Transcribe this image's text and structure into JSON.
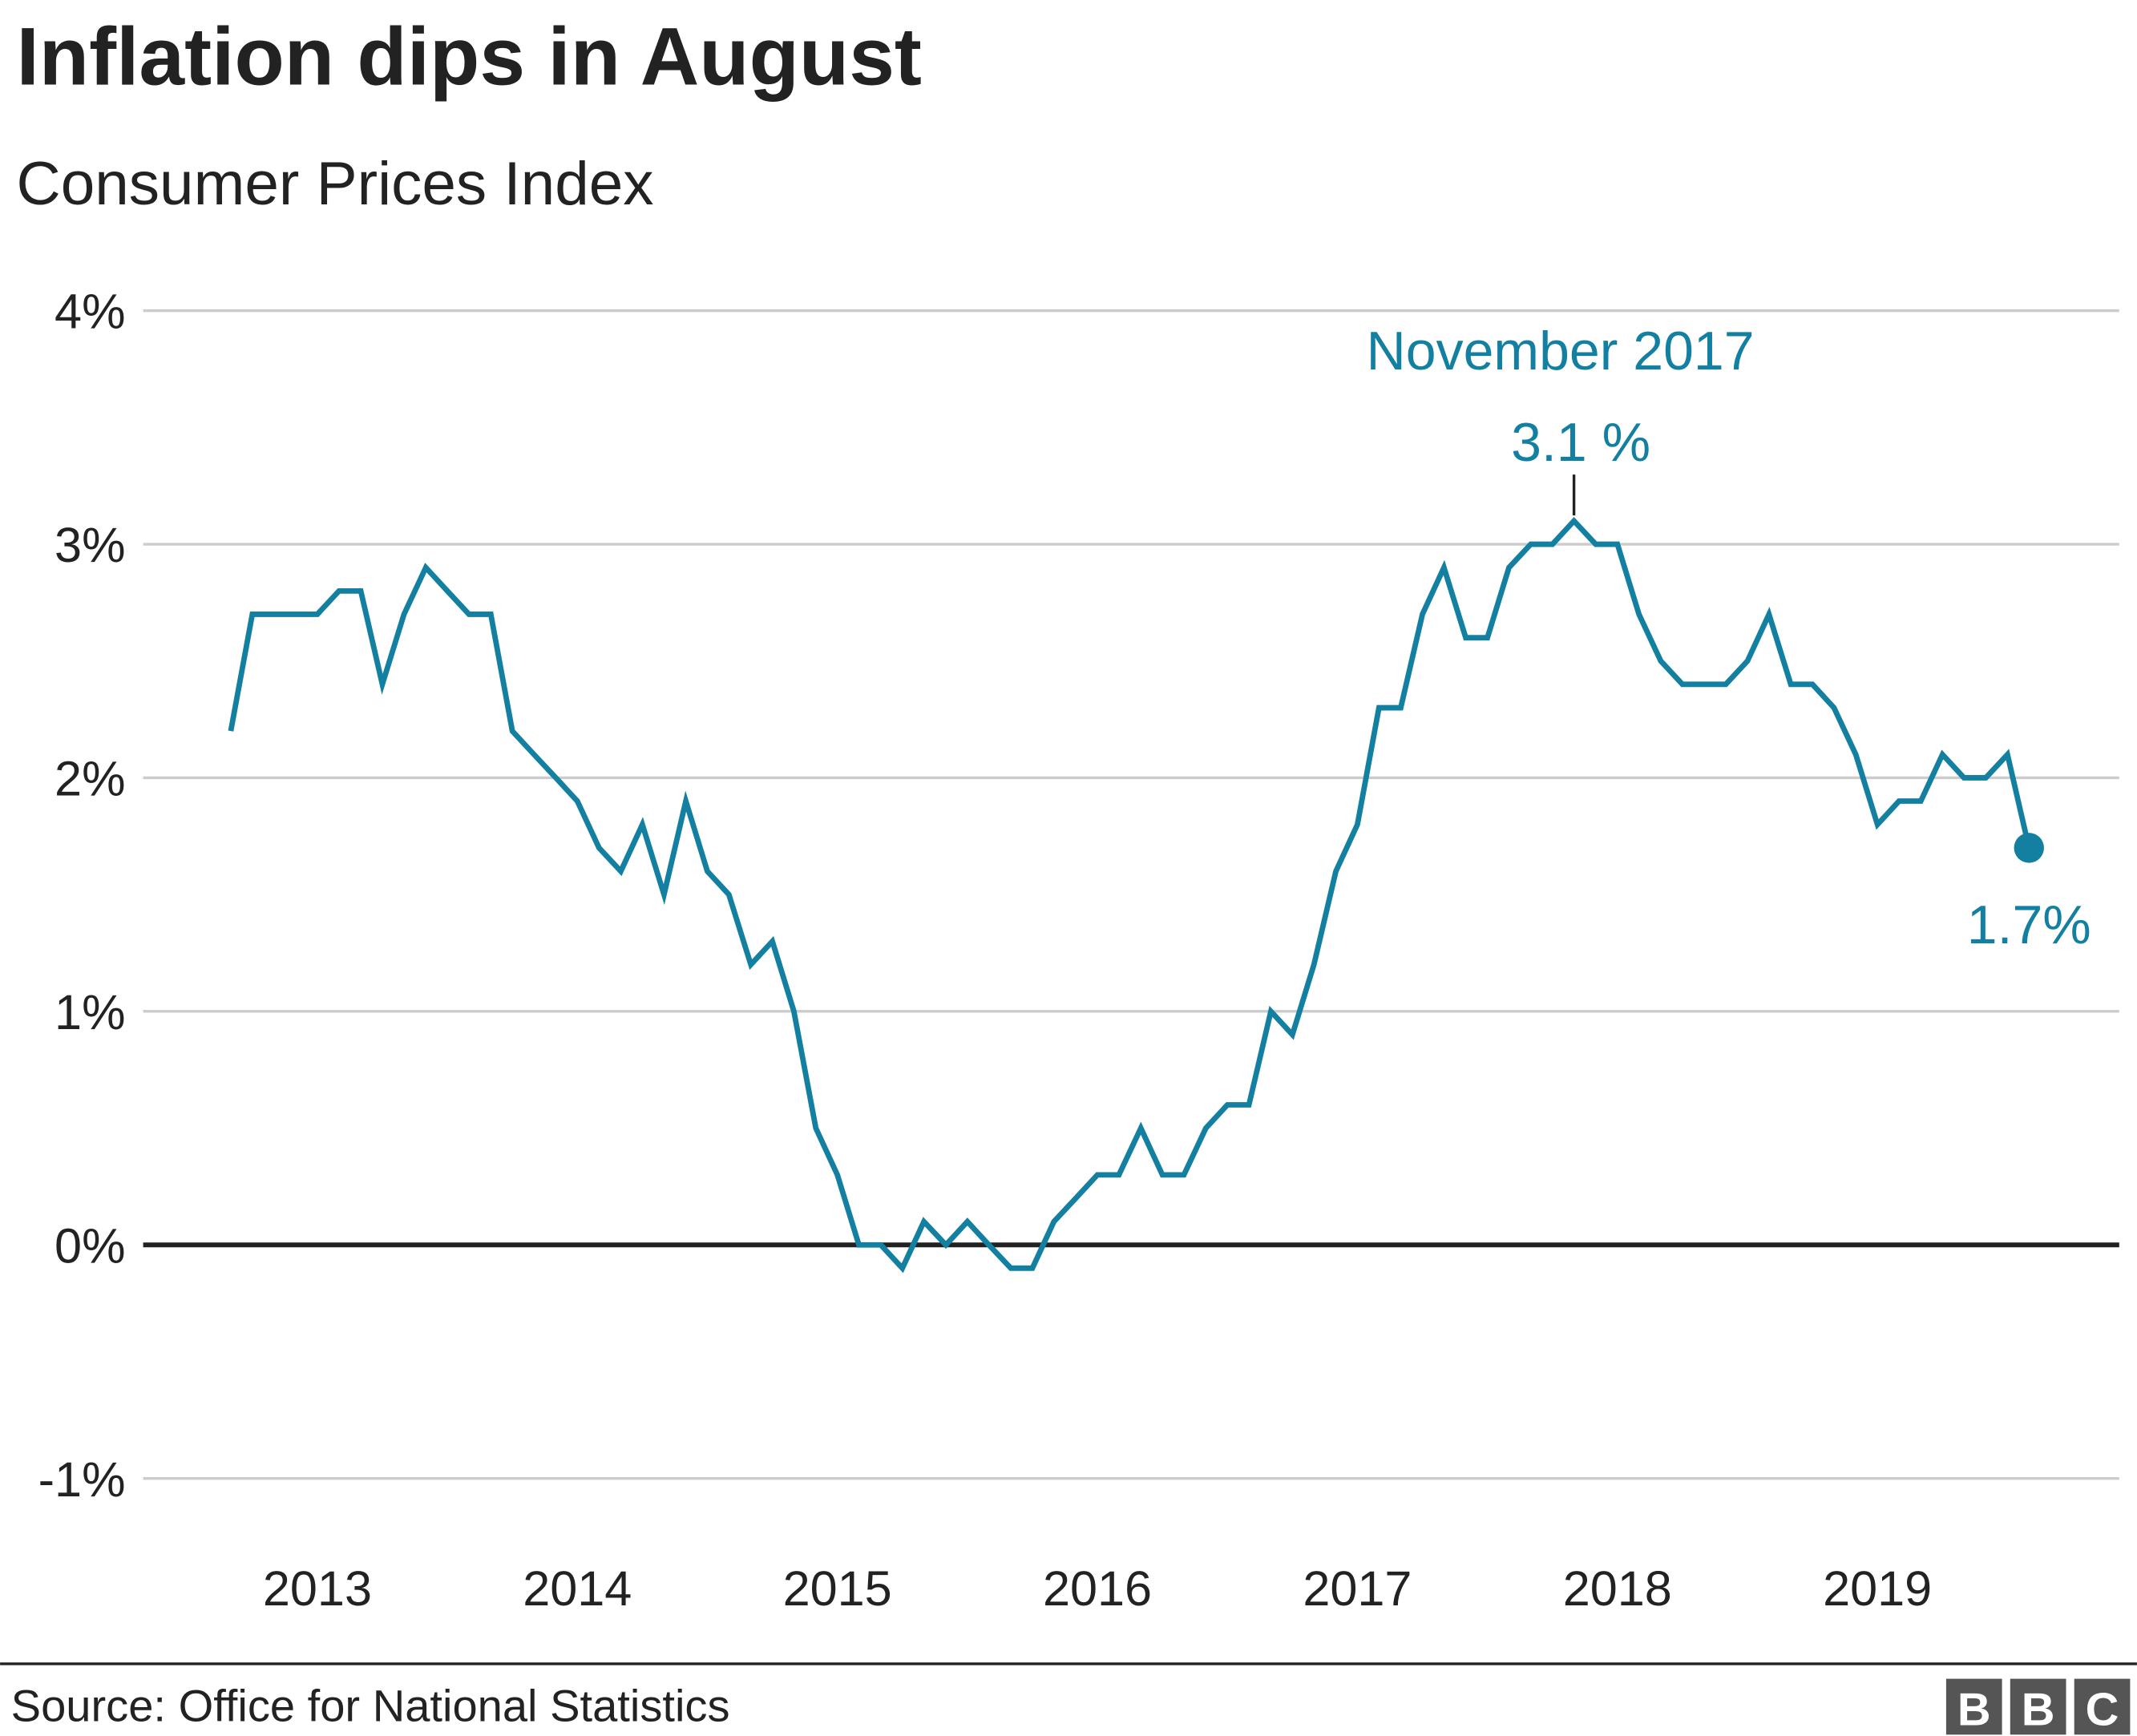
{
  "chart_data": {
    "type": "line",
    "title": "Inflation dips in August",
    "subtitle": "Consumer Prices Index",
    "source": "Source: Office for National Statistics",
    "logo": [
      "B",
      "B",
      "C"
    ],
    "color": "#1380a1",
    "x": [
      2012.667,
      2012.75,
      2012.833,
      2012.917,
      2013.0,
      2013.083,
      2013.167,
      2013.25,
      2013.333,
      2013.417,
      2013.5,
      2013.583,
      2013.667,
      2013.75,
      2013.833,
      2013.917,
      2014.0,
      2014.083,
      2014.167,
      2014.25,
      2014.333,
      2014.417,
      2014.5,
      2014.583,
      2014.667,
      2014.75,
      2014.833,
      2014.917,
      2015.0,
      2015.083,
      2015.167,
      2015.25,
      2015.333,
      2015.417,
      2015.5,
      2015.583,
      2015.667,
      2015.75,
      2015.833,
      2015.917,
      2016.0,
      2016.083,
      2016.167,
      2016.25,
      2016.333,
      2016.417,
      2016.5,
      2016.583,
      2016.667,
      2016.75,
      2016.833,
      2016.917,
      2017.0,
      2017.083,
      2017.167,
      2017.25,
      2017.333,
      2017.417,
      2017.5,
      2017.583,
      2017.667,
      2017.75,
      2017.833,
      2017.917,
      2018.0,
      2018.083,
      2018.167,
      2018.25,
      2018.333,
      2018.417,
      2018.5,
      2018.583,
      2018.667,
      2018.75,
      2018.833,
      2018.917,
      2019.0,
      2019.083,
      2019.167,
      2019.25,
      2019.333,
      2019.417,
      2019.5,
      2019.583
    ],
    "values": [
      2.2,
      2.7,
      2.7,
      2.7,
      2.7,
      2.8,
      2.8,
      2.4,
      2.7,
      2.9,
      2.8,
      2.7,
      2.7,
      2.2,
      2.1,
      2.0,
      1.9,
      1.7,
      1.6,
      1.8,
      1.5,
      1.9,
      1.6,
      1.5,
      1.2,
      1.3,
      1.0,
      0.5,
      0.3,
      0.0,
      0.0,
      -0.1,
      0.1,
      0.0,
      0.1,
      0.0,
      -0.1,
      -0.1,
      0.1,
      0.2,
      0.3,
      0.3,
      0.5,
      0.3,
      0.3,
      0.5,
      0.6,
      0.6,
      1.0,
      0.9,
      1.2,
      1.6,
      1.8,
      2.3,
      2.3,
      2.7,
      2.9,
      2.6,
      2.6,
      2.9,
      3.0,
      3.0,
      3.1,
      3.0,
      3.0,
      2.7,
      2.5,
      2.4,
      2.4,
      2.4,
      2.5,
      2.7,
      2.4,
      2.4,
      2.3,
      2.1,
      1.8,
      1.9,
      1.9,
      2.1,
      2.0,
      2.0,
      2.1,
      1.7
    ],
    "value_labels": [
      null,
      null,
      null,
      null,
      null,
      null,
      null,
      null,
      null,
      null,
      null,
      null,
      null,
      null,
      null,
      null,
      null,
      null,
      null,
      null,
      null,
      null,
      null,
      null,
      null,
      null,
      null,
      null,
      null,
      null,
      null,
      null,
      null,
      null,
      null,
      null,
      null,
      null,
      null,
      null,
      null,
      null,
      null,
      null,
      null,
      null,
      null,
      null,
      null,
      null,
      null,
      null,
      null,
      null,
      null,
      null,
      null,
      null,
      null,
      null,
      null,
      null,
      "3.1 %",
      null,
      null,
      null,
      null,
      null,
      null,
      null,
      null,
      null,
      null,
      null,
      null,
      null,
      null,
      null,
      null,
      null,
      null,
      null,
      null,
      "1.7%"
    ],
    "annotations": [
      {
        "text": "November 2017",
        "index": 62
      }
    ],
    "xlim": [
      2012.33,
      2019.93
    ],
    "xticks": [
      2013,
      2014,
      2015,
      2016,
      2017,
      2018,
      2019
    ],
    "ylim": [
      -1,
      4
    ],
    "yticks": [
      {
        "value": -1,
        "label": "-1%"
      },
      {
        "value": 0,
        "label": "0%"
      },
      {
        "value": 1,
        "label": "1%"
      },
      {
        "value": 2,
        "label": "2%"
      },
      {
        "value": 3,
        "label": "3%"
      },
      {
        "value": 4,
        "label": "4%"
      }
    ],
    "grid": true
  }
}
